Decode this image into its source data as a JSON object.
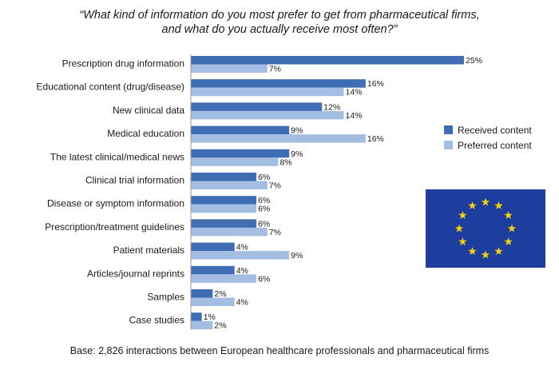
{
  "title_line1": "“What kind of information do you most prefer to get from pharmaceutical firms,",
  "title_line2": "and what do you actually receive most often?”",
  "footnote": "Base: 2,826 interactions between European healthcare professionals and pharmaceutical firms",
  "colors": {
    "received": "#3e6db3",
    "preferred": "#a4bde3",
    "flag_bg": "#1d3e9e",
    "flag_star": "#f5d10d"
  },
  "flag": {
    "icon": "eu-flag-icon",
    "stars": 12
  },
  "chart_data": {
    "type": "bar",
    "orientation": "horizontal",
    "title": "“What kind of information do you most prefer to get from pharmaceutical firms, and what do you actually receive most often?”",
    "xlim": [
      0,
      25
    ],
    "grid": false,
    "legend_position": "right",
    "categories": [
      "Prescription drug information",
      "Educational content (drug/disease)",
      "New clinical data",
      "Medical education",
      "The latest clinical/medical news",
      "Clinical trial information",
      "Disease or symptom information",
      "Prescription/treatment guidelines",
      "Patient materials",
      "Articles/journal reprints",
      "Samples",
      "Case studies"
    ],
    "series": [
      {
        "name": "Received content",
        "values": [
          25,
          16,
          12,
          9,
          9,
          6,
          6,
          6,
          4,
          4,
          2,
          1
        ],
        "labels": [
          "25%",
          "16%",
          "12%",
          "9%",
          "9%",
          "6%",
          "6%",
          "6%",
          "4%",
          "4%",
          "2%",
          "1%"
        ]
      },
      {
        "name": "Preferred content",
        "values": [
          7,
          14,
          14,
          16,
          8,
          7,
          6,
          7,
          9,
          6,
          4,
          2
        ],
        "labels": [
          "7%",
          "14%",
          "14%",
          "16%",
          "8%",
          "7%",
          "6%",
          "7%",
          "9%",
          "6%",
          "4%",
          "2%"
        ]
      }
    ]
  }
}
